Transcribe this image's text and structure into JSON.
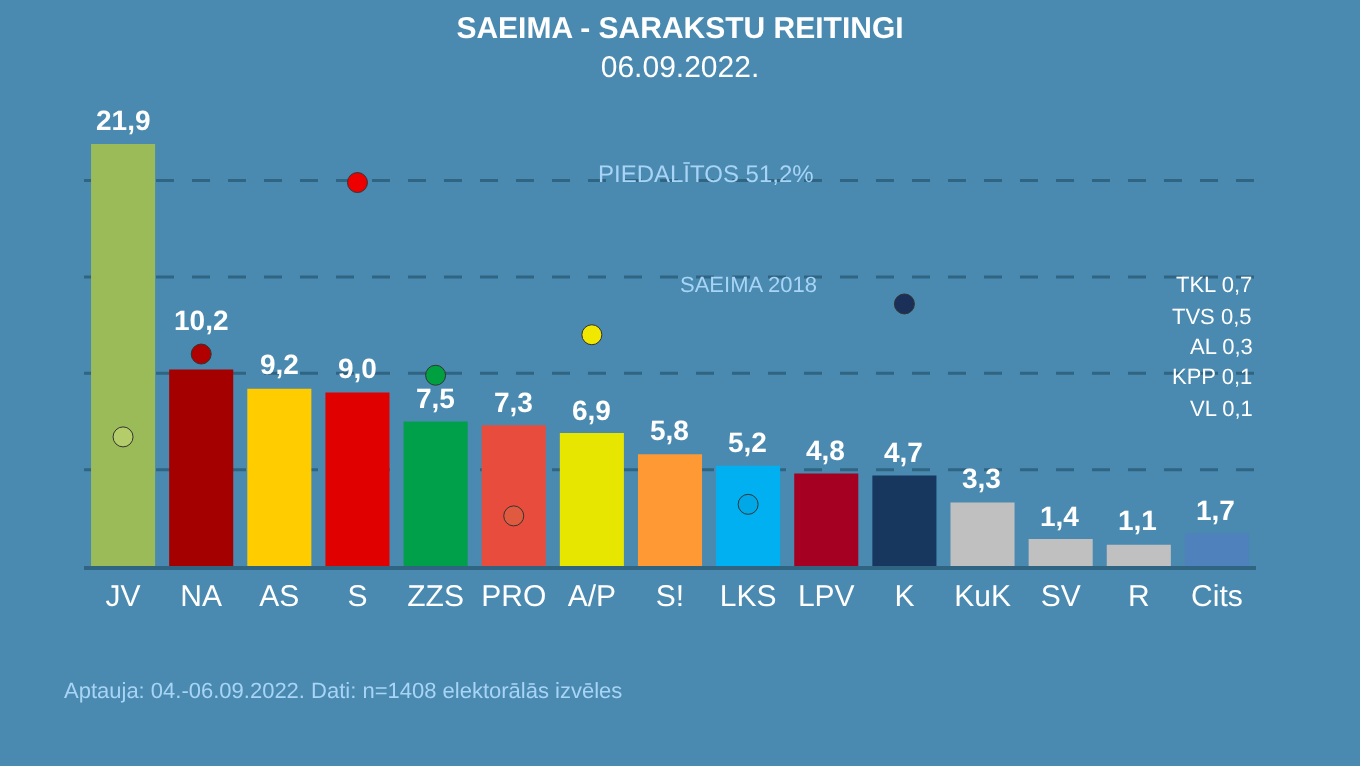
{
  "chart_data": {
    "type": "bar",
    "title": "SAEIMA - SARAKSTU REITINGI",
    "subtitle": "06.09.2022.",
    "categories": [
      "JV",
      "NA",
      "AS",
      "S",
      "ZZS",
      "PRO",
      "A/P",
      "S!",
      "LKS",
      "LPV",
      "K",
      "KuK",
      "SV",
      "R",
      "Cits"
    ],
    "series": [
      {
        "colors": [
          "#9bbb59",
          "#a50000",
          "#ffcc00",
          "#e00000",
          "#00a04a",
          "#e84c3d",
          "#e6e600",
          "#ff9933",
          "#00b0f0",
          "#a50021",
          "#17375e",
          "#c0c0c0",
          "#c0c0c0",
          "#c0c0c0",
          "#4f81bd"
        ],
        "values": [
          21.9,
          10.2,
          9.2,
          9.0,
          7.5,
          7.3,
          6.9,
          5.8,
          5.2,
          4.8,
          4.7,
          3.3,
          1.4,
          1.1,
          1.7
        ],
        "value_labels": [
          "21,9",
          "10,2",
          "9,2",
          "9,0",
          "7,5",
          "7,3",
          "6,9",
          "5,8",
          "5,2",
          "4,8",
          "4,7",
          "3,3",
          "1,4",
          "1,1",
          "1,7"
        ]
      },
      {
        "type": "scatter",
        "colors": [
          "#b5cc6a",
          "#b00000",
          null,
          "#ee0000",
          "#00a040",
          "#e05a40",
          "#f0e800",
          null,
          "#00a8e8",
          null,
          "#1a3058",
          null,
          null,
          null,
          null
        ],
        "values": [
          6.7,
          11.0,
          null,
          19.9,
          9.9,
          2.6,
          12.0,
          null,
          3.2,
          null,
          13.6,
          null,
          null,
          null,
          null
        ]
      }
    ],
    "ref_lines": [
      {
        "axis": "y",
        "value": 5,
        "color": "#2f6483",
        "line_style": "dashed"
      },
      {
        "axis": "y",
        "value": 10,
        "color": "#2f6483",
        "line_style": "dashed"
      },
      {
        "axis": "y",
        "value": 15,
        "color": "#2f6483",
        "line_style": "dashed"
      },
      {
        "axis": "y",
        "value": 20,
        "color": "#2f6483",
        "line_style": "dashed"
      }
    ],
    "tick_labels": "x",
    "marker": "circle",
    "annotations": [
      "PIEDALĪTOS 51,2%",
      "SAEIMA 2018",
      "TKL 0,7",
      "TVS 0,5",
      "AL 0,3",
      "KPP 0,1",
      "VL 0,1",
      "Aptauja: 04.-06.09.2022. Dati: n=1408 elektorālās izvēles"
    ]
  }
}
